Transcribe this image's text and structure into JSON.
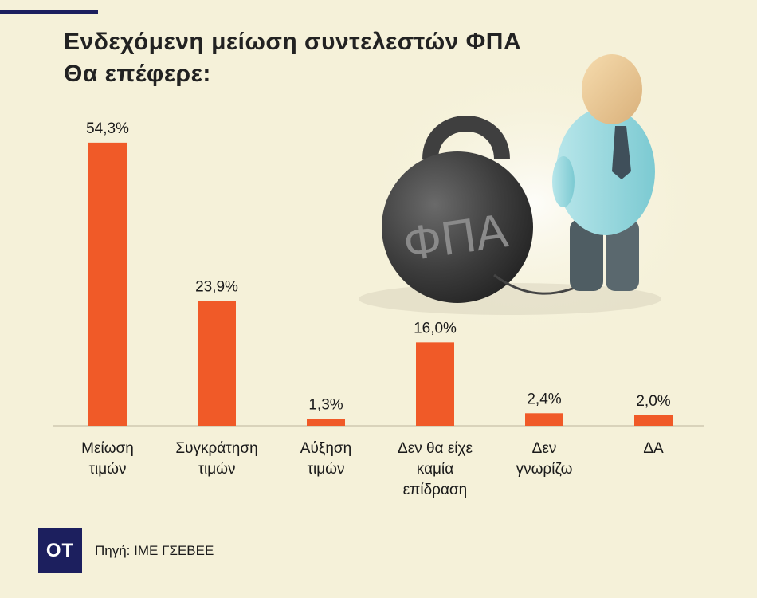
{
  "title_lines": [
    "Ενδεχόμενη μείωση συντελεστών ΦΠΑ",
    "Θα επέφερε:"
  ],
  "chart_data": {
    "type": "bar",
    "categories": [
      [
        "Μείωση",
        "τιμών"
      ],
      [
        "Συγκράτηση",
        "τιμών"
      ],
      [
        "Αύξηση",
        "τιμών"
      ],
      [
        "Δεν θα είχε",
        "καμία",
        "επίδραση"
      ],
      [
        "Δεν",
        "γνωρίζω"
      ],
      [
        "ΔΑ"
      ]
    ],
    "values": [
      54.3,
      23.9,
      1.3,
      16.0,
      2.4,
      2.0
    ],
    "value_labels": [
      "54,3%",
      "23,9%",
      "1,3%",
      "16,0%",
      "2,4%",
      "2,0%"
    ],
    "bar_color": "#f05a28",
    "ylim": [
      0,
      100
    ],
    "grid": false
  },
  "illustration": {
    "weight_text": "ΦΠΑ"
  },
  "logo_text": "OT",
  "source": "Πηγή: ΙΜΕ ΓΣΕΒΕΕ",
  "colors": {
    "background": "#f5f1d9",
    "accent": "#1c1f5e",
    "bar": "#f05a28"
  }
}
